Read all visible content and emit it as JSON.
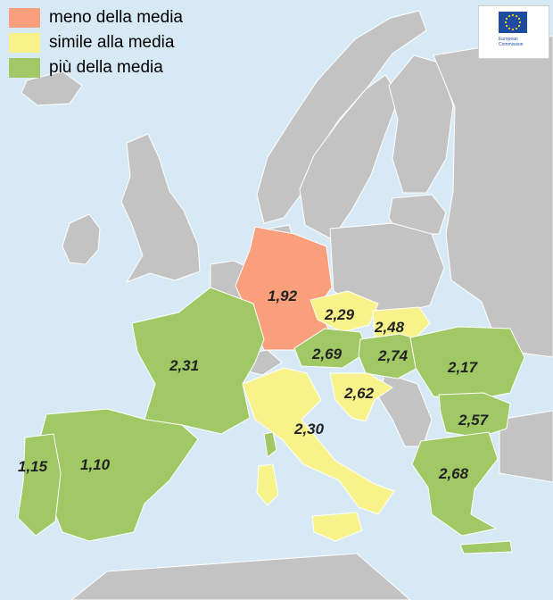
{
  "colors": {
    "sea": "#d6e9f5",
    "non_highlighted": "#c3c3c3",
    "border": "#ffffff",
    "below_average": "#fa9f7c",
    "similar_average": "#f7f38a",
    "above_average": "#a0c965",
    "eu_blue": "#1e4ba0",
    "eu_star": "#ffd617"
  },
  "legend": [
    {
      "label": "meno della media",
      "category": "below_average"
    },
    {
      "label": "simile alla media",
      "category": "similar_average"
    },
    {
      "label": "più della media",
      "category": "above_average"
    }
  ],
  "logo": {
    "line1": "European",
    "line2": "Commission"
  },
  "regions": [
    {
      "value": "1,92",
      "category": "below_average"
    },
    {
      "value": "2,29",
      "category": "similar_average"
    },
    {
      "value": "2,48",
      "category": "similar_average"
    },
    {
      "value": "2,69",
      "category": "above_average"
    },
    {
      "value": "2,74",
      "category": "above_average"
    },
    {
      "value": "2,17",
      "category": "above_average"
    },
    {
      "value": "2,31",
      "category": "above_average"
    },
    {
      "value": "2,62",
      "category": "similar_average"
    },
    {
      "value": "2,30",
      "category": "similar_average"
    },
    {
      "value": "2,57",
      "category": "above_average"
    },
    {
      "value": "1,15",
      "category": "above_average"
    },
    {
      "value": "1,10",
      "category": "above_average"
    },
    {
      "value": "2,68",
      "category": "above_average"
    }
  ]
}
